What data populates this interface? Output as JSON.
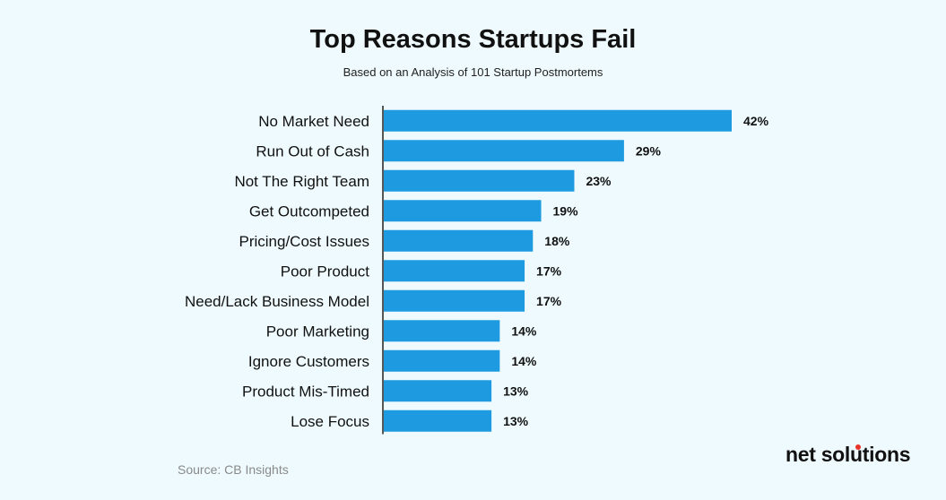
{
  "title": "Top Reasons Startups Fail",
  "subtitle": "Based on an Analysis of 101 Startup Postmortems",
  "source": "Source: CB Insights",
  "brand": {
    "name": "net solutions",
    "accent_color": "#e8332a"
  },
  "colors": {
    "bar": "#1e9be0",
    "axis": "#222222",
    "background": "#eefafd"
  },
  "chart_data": {
    "type": "bar",
    "orientation": "horizontal",
    "title": "Top Reasons Startups Fail",
    "subtitle": "Based on an Analysis of 101 Startup Postmortems",
    "categories": [
      "No Market Need",
      "Run Out of Cash",
      "Not The Right Team",
      "Get Outcompeted",
      "Pricing/Cost Issues",
      "Poor Product",
      "Need/Lack Business Model",
      "Poor Marketing",
      "Ignore Customers",
      "Product Mis-Timed",
      "Lose Focus"
    ],
    "values": [
      42,
      29,
      23,
      19,
      18,
      17,
      17,
      14,
      14,
      13,
      13
    ],
    "value_labels": [
      "42%",
      "29%",
      "23%",
      "19%",
      "18%",
      "17%",
      "17%",
      "14%",
      "14%",
      "13%",
      "13%"
    ],
    "unit": "%",
    "xlabel": "",
    "ylabel": "",
    "xlim": [
      0,
      42
    ],
    "grid": false,
    "legend": "none"
  }
}
